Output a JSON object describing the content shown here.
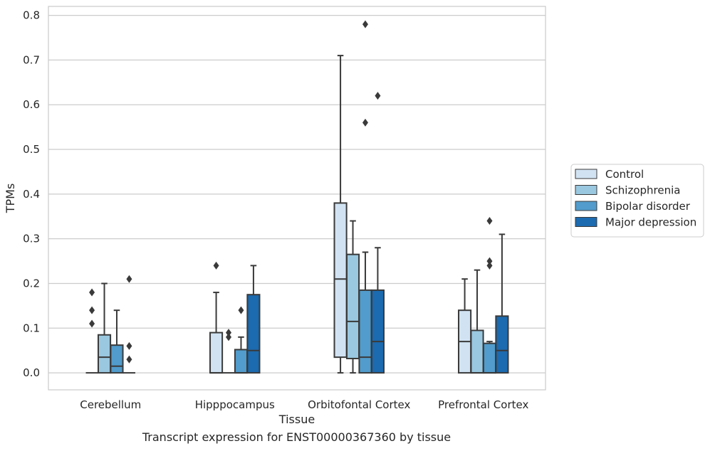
{
  "caption": "Transcript expression for ENST00000367360 by tissue",
  "chart_data": {
    "type": "box",
    "title": "",
    "xlabel": "Tissue",
    "ylabel": "TPMs",
    "ylim": [
      -0.038,
      0.82
    ],
    "yticks": [
      0.0,
      0.1,
      0.2,
      0.3,
      0.4,
      0.5,
      0.6,
      0.7,
      0.8
    ],
    "ytick_labels": [
      "0.0",
      "0.1",
      "0.2",
      "0.3",
      "0.4",
      "0.5",
      "0.6",
      "0.7",
      "0.8"
    ],
    "grid": "horizontal",
    "legend_position": "right",
    "categories": [
      "Cerebellum",
      "Hipppocampus",
      "Orbitofontal Cortex",
      "Prefrontal Cortex"
    ],
    "series": [
      {
        "name": "Control",
        "color": "#d1e3f3",
        "boxes": [
          {
            "q1": 0.0,
            "median": 0.0,
            "q3": 0.0,
            "whisker_low": 0.0,
            "whisker_high": 0.0,
            "outliers": [
              0.11,
              0.14,
              0.18
            ]
          },
          {
            "q1": 0.0,
            "median": 0.0,
            "q3": 0.09,
            "whisker_low": 0.0,
            "whisker_high": 0.18,
            "outliers": [
              0.24
            ]
          },
          {
            "q1": 0.035,
            "median": 0.21,
            "q3": 0.38,
            "whisker_low": 0.0,
            "whisker_high": 0.71,
            "outliers": []
          },
          {
            "q1": 0.0,
            "median": 0.07,
            "q3": 0.14,
            "whisker_low": 0.0,
            "whisker_high": 0.21,
            "outliers": []
          }
        ]
      },
      {
        "name": "Schizophrenia",
        "color": "#9ac8e0",
        "boxes": [
          {
            "q1": 0.0,
            "median": 0.035,
            "q3": 0.085,
            "whisker_low": 0.0,
            "whisker_high": 0.2,
            "outliers": []
          },
          {
            "q1": 0.0,
            "median": 0.0,
            "q3": 0.0,
            "whisker_low": 0.0,
            "whisker_high": 0.0,
            "outliers": [
              0.08,
              0.09
            ]
          },
          {
            "q1": 0.032,
            "median": 0.115,
            "q3": 0.265,
            "whisker_low": 0.0,
            "whisker_high": 0.34,
            "outliers": []
          },
          {
            "q1": 0.0,
            "median": 0.0,
            "q3": 0.095,
            "whisker_low": 0.0,
            "whisker_high": 0.23,
            "outliers": []
          }
        ]
      },
      {
        "name": "Bipolar disorder",
        "color": "#519ccc",
        "boxes": [
          {
            "q1": 0.0,
            "median": 0.015,
            "q3": 0.062,
            "whisker_low": 0.0,
            "whisker_high": 0.14,
            "outliers": []
          },
          {
            "q1": 0.0,
            "median": 0.0,
            "q3": 0.052,
            "whisker_low": 0.0,
            "whisker_high": 0.08,
            "outliers": [
              0.14
            ]
          },
          {
            "q1": 0.0,
            "median": 0.035,
            "q3": 0.185,
            "whisker_low": 0.0,
            "whisker_high": 0.27,
            "outliers": [
              0.56,
              0.78
            ]
          },
          {
            "q1": 0.0,
            "median": 0.0,
            "q3": 0.066,
            "whisker_low": 0.0,
            "whisker_high": 0.07,
            "outliers": [
              0.24,
              0.25,
              0.34
            ]
          }
        ]
      },
      {
        "name": "Major depression",
        "color": "#1c6aaf",
        "boxes": [
          {
            "q1": 0.0,
            "median": 0.0,
            "q3": 0.0,
            "whisker_low": 0.0,
            "whisker_high": 0.0,
            "outliers": [
              0.03,
              0.06,
              0.21
            ]
          },
          {
            "q1": 0.0,
            "median": 0.05,
            "q3": 0.175,
            "whisker_low": 0.0,
            "whisker_high": 0.24,
            "outliers": []
          },
          {
            "q1": 0.0,
            "median": 0.07,
            "q3": 0.185,
            "whisker_low": 0.0,
            "whisker_high": 0.28,
            "outliers": [
              0.62
            ]
          },
          {
            "q1": 0.0,
            "median": 0.05,
            "q3": 0.127,
            "whisker_low": 0.0,
            "whisker_high": 0.31,
            "outliers": []
          }
        ]
      }
    ]
  }
}
